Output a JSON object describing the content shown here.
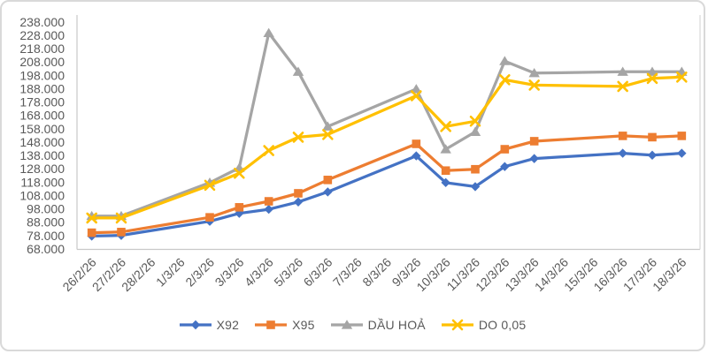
{
  "chart_data": {
    "type": "line",
    "categories": [
      "26/2/26",
      "27/2/26",
      "28/2/26",
      "1/3/26",
      "2/3/26",
      "3/3/26",
      "4/3/26",
      "5/3/26",
      "6/3/26",
      "7/3/26",
      "8/3/26",
      "9/3/26",
      "10/3/26",
      "11/3/26",
      "12/3/26",
      "13/3/26",
      "14/3/26",
      "15/3/26",
      "16/3/26",
      "17/3/26",
      "18/3/26"
    ],
    "series": [
      {
        "name": "X92",
        "marker": "diamond",
        "color": "#4472C4",
        "values": [
          78000,
          78500,
          null,
          null,
          89000,
          95000,
          98000,
          103500,
          111000,
          null,
          null,
          138000,
          118000,
          115000,
          130000,
          136000,
          null,
          null,
          140000,
          138500,
          140000
        ]
      },
      {
        "name": "X95",
        "marker": "square",
        "color": "#ED7D31",
        "values": [
          80500,
          81000,
          null,
          null,
          92000,
          99500,
          104000,
          110000,
          120000,
          null,
          null,
          147000,
          127000,
          128000,
          143000,
          149000,
          null,
          null,
          153000,
          152000,
          153000
        ]
      },
      {
        "name": "DẦU HOẢ",
        "marker": "triangle",
        "color": "#A5A5A5",
        "values": [
          93000,
          93000,
          null,
          null,
          118000,
          129000,
          230000,
          201000,
          160000,
          null,
          null,
          188000,
          143000,
          156000,
          209000,
          200000,
          null,
          null,
          201000,
          201000,
          201000
        ]
      },
      {
        "name": "DO 0,05",
        "marker": "x-cross",
        "color": "#FFC000",
        "values": [
          91500,
          91500,
          null,
          null,
          116000,
          125000,
          142000,
          152000,
          154000,
          null,
          null,
          183000,
          160000,
          164000,
          195000,
          191000,
          null,
          null,
          190000,
          196000,
          197000
        ]
      }
    ],
    "ylim": [
      68000,
      238000
    ],
    "ytick_step": 10000,
    "ytick_labels": [
      "238.000",
      "228.000",
      "218.000",
      "208.000",
      "198.000",
      "188.000",
      "178.000",
      "168.000",
      "158.000",
      "148.000",
      "138.000",
      "128.000",
      "118.000",
      "108.000",
      "98.000",
      "88.000",
      "78.000",
      "68.000"
    ],
    "grid": false,
    "legend_position": "bottom",
    "gap_dates_no_data": [
      "28/2/26",
      "1/3/26",
      "7/3/26",
      "8/3/26",
      "14/3/26",
      "15/3/26"
    ]
  },
  "colors": {
    "axis_line": "#c9c9c9",
    "plot_border": "#d9d9d9",
    "tick_text": "#595959",
    "frame_border": "#d9d9d9",
    "background": "#ffffff"
  }
}
